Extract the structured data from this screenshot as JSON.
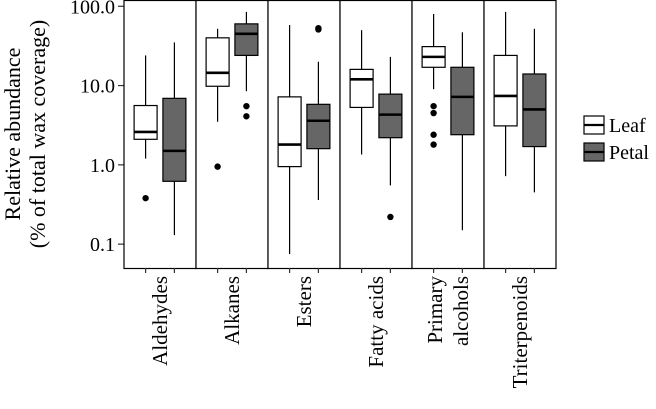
{
  "chart_data": {
    "type": "boxplot",
    "title": "",
    "xlabel": "",
    "ylabel_lines": [
      "Relative abundance",
      "(% of total wax coverage)"
    ],
    "yscale": "log10",
    "ylim": [
      0.05,
      120
    ],
    "yticks": [
      {
        "value": 0.1,
        "label": "0.1"
      },
      {
        "value": 1,
        "label": "1.0"
      },
      {
        "value": 10,
        "label": "10.0"
      },
      {
        "value": 100,
        "label": "100.0"
      }
    ],
    "facets": [
      {
        "label_lines": [
          "Aldehydes"
        ]
      },
      {
        "label_lines": [
          "Alkanes"
        ]
      },
      {
        "label_lines": [
          "Esters"
        ]
      },
      {
        "label_lines": [
          "Fatty acids"
        ]
      },
      {
        "label_lines": [
          "Primary",
          "alcohols"
        ]
      },
      {
        "label_lines": [
          "Triterpenoids"
        ]
      }
    ],
    "series": [
      {
        "name": "Leaf",
        "color": "#ffffff",
        "boxes": [
          {
            "whisker_low": 1.2,
            "q1": 2.1,
            "median": 2.6,
            "q3": 5.6,
            "whisker_high": 24,
            "outliers": [
              0.38
            ]
          },
          {
            "whisker_low": 3.5,
            "q1": 9.8,
            "median": 14.5,
            "q3": 40,
            "whisker_high": 52,
            "outliers": [
              0.95
            ]
          },
          {
            "whisker_low": 0.075,
            "q1": 0.95,
            "median": 1.8,
            "q3": 7.2,
            "whisker_high": 58,
            "outliers": []
          },
          {
            "whisker_low": 1.35,
            "q1": 5.3,
            "median": 12,
            "q3": 16,
            "whisker_high": 50,
            "outliers": []
          },
          {
            "whisker_low": 9,
            "q1": 17,
            "median": 23,
            "q3": 31,
            "whisker_high": 80,
            "outliers": [
              5.5,
              4.5,
              2.4,
              1.8
            ]
          },
          {
            "whisker_low": 0.72,
            "q1": 3.1,
            "median": 7.4,
            "q3": 24,
            "whisker_high": 85,
            "outliers": []
          }
        ]
      },
      {
        "name": "Petal",
        "color": "#666666",
        "boxes": [
          {
            "whisker_low": 0.13,
            "q1": 0.62,
            "median": 1.5,
            "q3": 6.9,
            "whisker_high": 35,
            "outliers": []
          },
          {
            "whisker_low": 8.5,
            "q1": 24,
            "median": 45,
            "q3": 60,
            "whisker_high": 85,
            "outliers": [
              5.5,
              4.1
            ]
          },
          {
            "whisker_low": 0.36,
            "q1": 1.6,
            "median": 3.6,
            "q3": 5.8,
            "whisker_high": 20,
            "outliers": [
              53,
              51
            ]
          },
          {
            "whisker_low": 0.55,
            "q1": 2.2,
            "median": 4.3,
            "q3": 7.8,
            "whisker_high": 23,
            "outliers": [
              0.22
            ]
          },
          {
            "whisker_low": 0.15,
            "q1": 2.4,
            "median": 7.2,
            "q3": 17,
            "whisker_high": 47,
            "outliers": []
          },
          {
            "whisker_low": 0.45,
            "q1": 1.7,
            "median": 5.0,
            "q3": 14,
            "whisker_high": 52,
            "outliers": []
          }
        ]
      }
    ],
    "legend": {
      "position": "right",
      "items": [
        "Leaf",
        "Petal"
      ]
    }
  }
}
